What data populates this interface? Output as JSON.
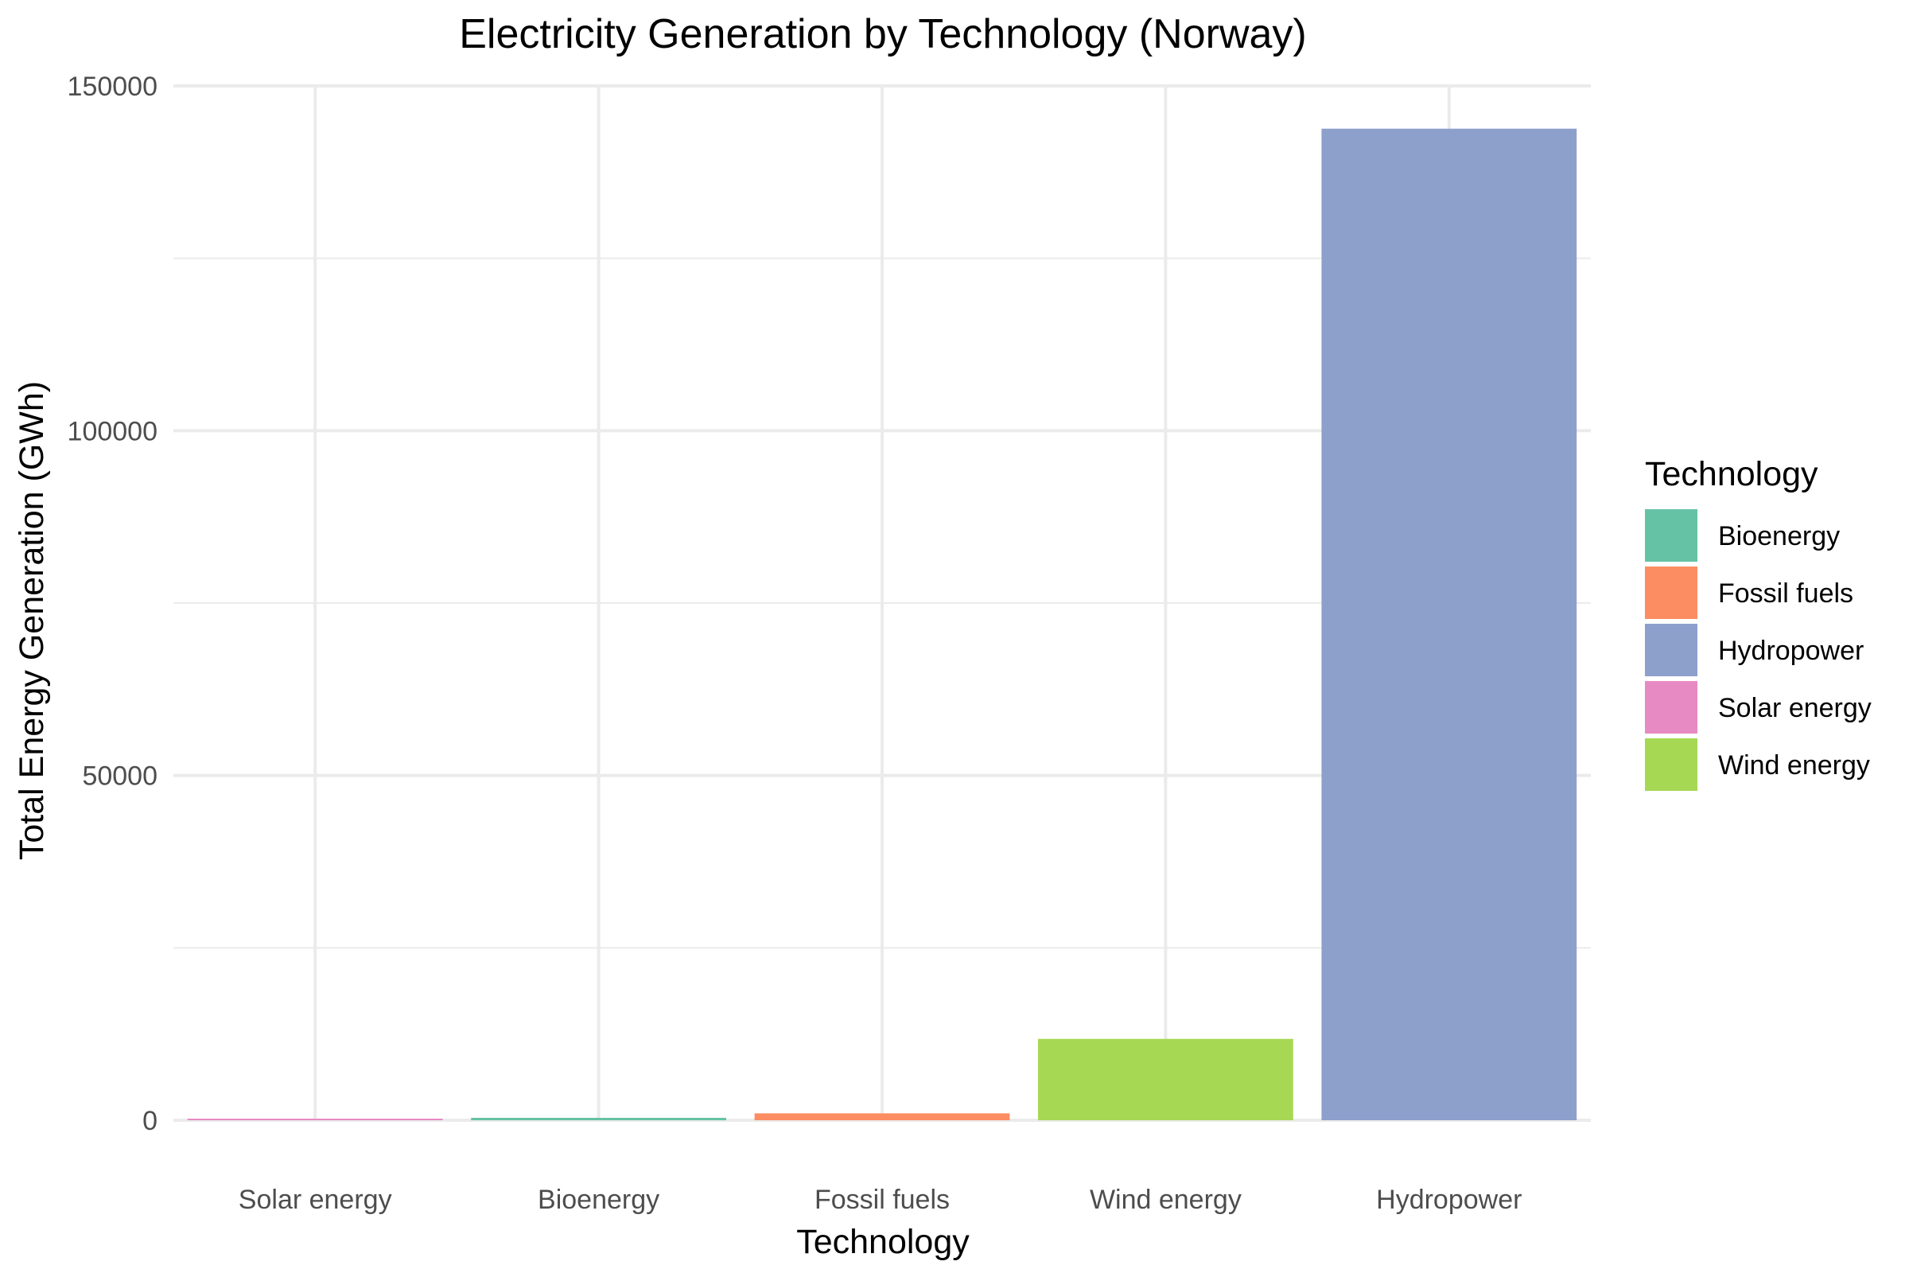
{
  "chart_data": {
    "type": "bar",
    "title": "Electricity Generation by Technology (Norway)",
    "xlabel": "Technology",
    "ylabel": "Total Energy Generation (GWh)",
    "categories": [
      "Solar energy",
      "Bioenergy",
      "Fossil fuels",
      "Wind energy",
      "Hydropower"
    ],
    "values": [
      150,
      350,
      1000,
      11800,
      143800
    ],
    "bar_colors": [
      "#e78ac3",
      "#66c2a5",
      "#fc8d62",
      "#a6d854",
      "#8da0cb"
    ],
    "ylim": [
      0,
      150000
    ],
    "y_ticks": [
      0,
      50000,
      100000,
      150000
    ],
    "y_tick_labels": [
      "0",
      "50000",
      "100000",
      "150000"
    ],
    "grid": true,
    "legend": {
      "title": "Technology",
      "position": "right",
      "entries": [
        {
          "label": "Bioenergy",
          "color": "#66c2a5"
        },
        {
          "label": "Fossil fuels",
          "color": "#fc8d62"
        },
        {
          "label": "Hydropower",
          "color": "#8da0cb"
        },
        {
          "label": "Solar energy",
          "color": "#e78ac3"
        },
        {
          "label": "Wind energy",
          "color": "#a6d854"
        }
      ]
    }
  }
}
